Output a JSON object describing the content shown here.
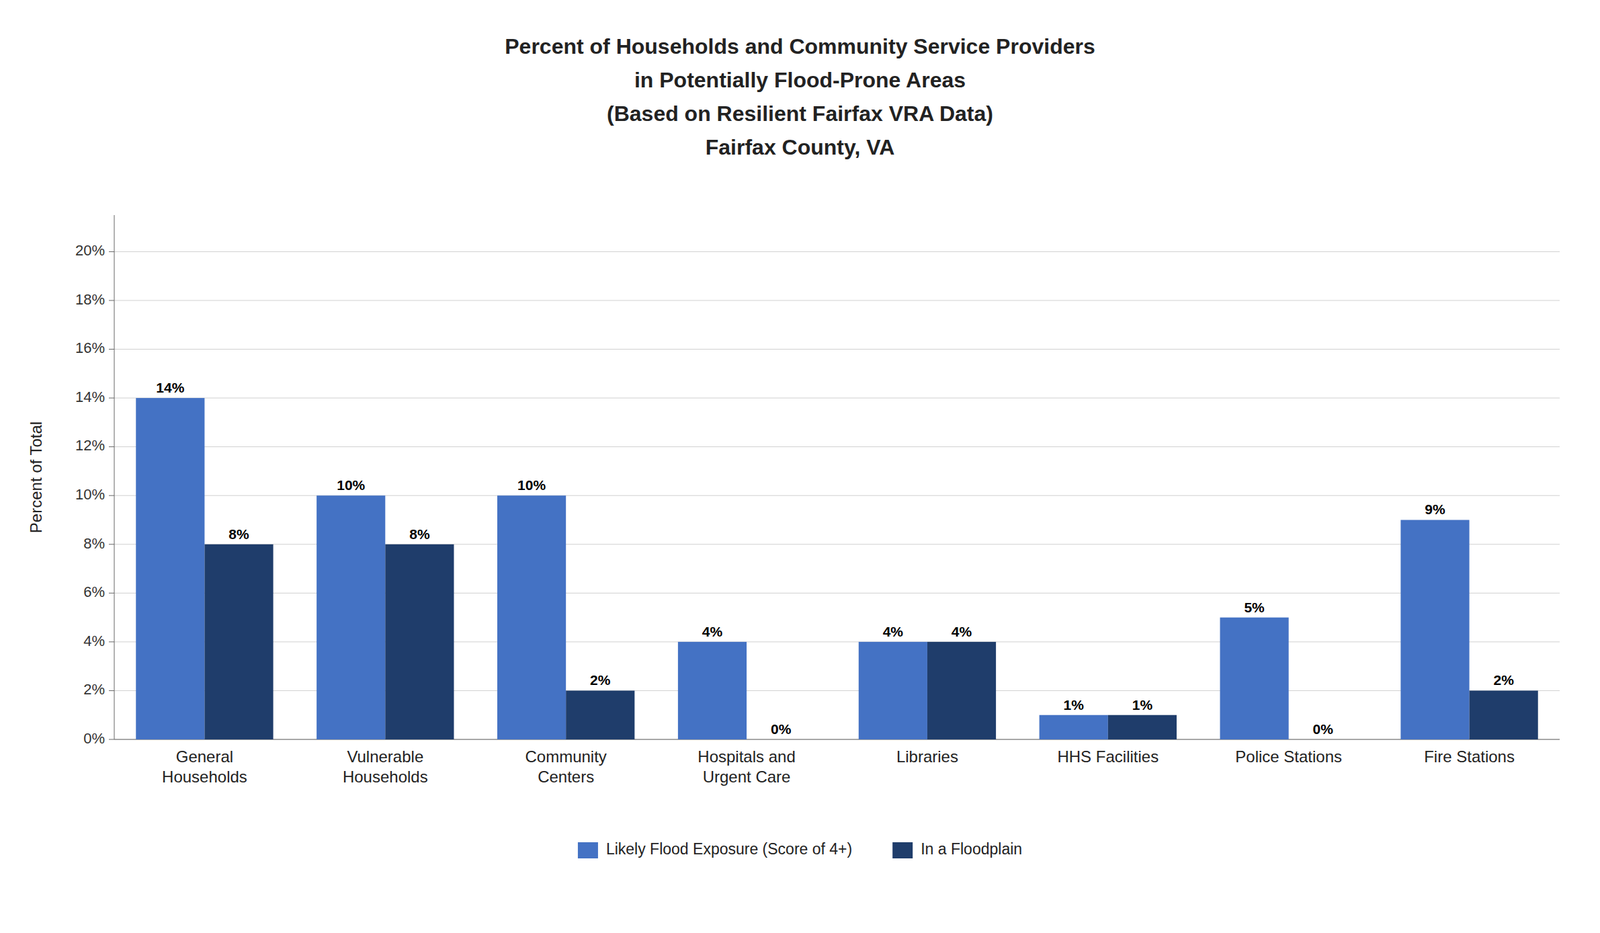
{
  "chart_data": {
    "type": "bar",
    "title": "Percent of Households and Community Service Providers\nin Potentially Flood-Prone Areas\n(Based on Resilient Fairfax VRA Data)\nFairfax County, VA",
    "y_label": "Percent of Total",
    "categories": [
      "General\nHouseholds",
      "Vulnerable\nHouseholds",
      "Community\nCenters",
      "Hospitals and\nUrgent Care",
      "Libraries",
      "HHS Facilities",
      "Police Stations",
      "Fire Stations"
    ],
    "series": [
      {
        "name": "Likely Flood Exposure (Score of 4+)",
        "color": "#4472C4",
        "values": [
          14,
          10,
          10,
          4,
          4,
          1,
          5,
          9
        ],
        "value_labels": [
          "14%",
          "10%",
          "10%",
          "4%",
          "4%",
          "1%",
          "5%",
          "9%"
        ]
      },
      {
        "name": "In a Floodplain",
        "color": "#1F3D6B",
        "values": [
          8,
          8,
          2,
          0,
          4,
          1,
          0,
          2
        ],
        "value_labels": [
          "8%",
          "8%",
          "2%",
          "0%",
          "4%",
          "1%",
          "0%",
          "2%"
        ]
      }
    ],
    "ylim": [
      0,
      21.5
    ],
    "yticks": [
      {
        "value": 0,
        "label": "0%"
      },
      {
        "value": 2,
        "label": "2%"
      },
      {
        "value": 4,
        "label": "4%"
      },
      {
        "value": 6,
        "label": "6%"
      },
      {
        "value": 8,
        "label": "8%"
      },
      {
        "value": 10,
        "label": "10%"
      },
      {
        "value": 12,
        "label": "12%"
      },
      {
        "value": 14,
        "label": "14%"
      },
      {
        "value": 16,
        "label": "16%"
      },
      {
        "value": 18,
        "label": "18%"
      },
      {
        "value": 20,
        "label": "20%"
      }
    ],
    "grid": true,
    "data_labels": true,
    "legend": "bottom"
  }
}
